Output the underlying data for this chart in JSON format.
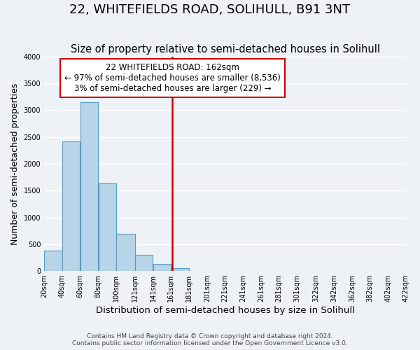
{
  "title": "22, WHITEFIELDS ROAD, SOLIHULL, B91 3NT",
  "subtitle": "Size of property relative to semi-detached houses in Solihull",
  "xlabel": "Distribution of semi-detached houses by size in Solihull",
  "ylabel": "Number of semi-detached properties",
  "footnote1": "Contains HM Land Registry data © Crown copyright and database right 2024.",
  "footnote2": "Contains public sector information licensed under the Open Government Licence v3.0.",
  "bar_left_edges": [
    20,
    40,
    60,
    80,
    100,
    121,
    141,
    161,
    181,
    201,
    221,
    241,
    261,
    281,
    301,
    322,
    342,
    362,
    382,
    402
  ],
  "bar_heights": [
    375,
    2420,
    3140,
    1635,
    700,
    305,
    130,
    55,
    0,
    0,
    0,
    0,
    0,
    0,
    0,
    0,
    0,
    0,
    0,
    0
  ],
  "bar_widths": [
    20,
    20,
    20,
    20,
    21,
    20,
    20,
    20,
    20,
    20,
    20,
    20,
    20,
    20,
    21,
    20,
    20,
    20,
    20,
    20
  ],
  "bar_color": "#b8d4e8",
  "bar_edge_color": "#5a9abf",
  "property_line_x": 162,
  "property_line_color": "#cc0000",
  "annotation_title": "22 WHITEFIELDS ROAD: 162sqm",
  "annotation_line1": "← 97% of semi-detached houses are smaller (8,536)",
  "annotation_line2": "3% of semi-detached houses are larger (229) →",
  "annotation_box_color": "#ffffff",
  "annotation_box_edge": "#cc0000",
  "ylim": [
    0,
    4000
  ],
  "yticks": [
    0,
    500,
    1000,
    1500,
    2000,
    2500,
    3000,
    3500,
    4000
  ],
  "xtick_labels": [
    "20sqm",
    "40sqm",
    "60sqm",
    "80sqm",
    "100sqm",
    "121sqm",
    "141sqm",
    "161sqm",
    "181sqm",
    "201sqm",
    "221sqm",
    "241sqm",
    "261sqm",
    "281sqm",
    "301sqm",
    "322sqm",
    "342sqm",
    "362sqm",
    "382sqm",
    "402sqm",
    "422sqm"
  ],
  "xtick_positions": [
    20,
    40,
    60,
    80,
    100,
    121,
    141,
    161,
    181,
    201,
    221,
    241,
    261,
    281,
    301,
    322,
    342,
    362,
    382,
    402,
    422
  ],
  "background_color": "#eef2f7",
  "grid_color": "#ffffff",
  "title_fontsize": 13,
  "subtitle_fontsize": 10.5,
  "axis_label_fontsize": 9,
  "tick_fontsize": 7,
  "annotation_fontsize": 8.5
}
